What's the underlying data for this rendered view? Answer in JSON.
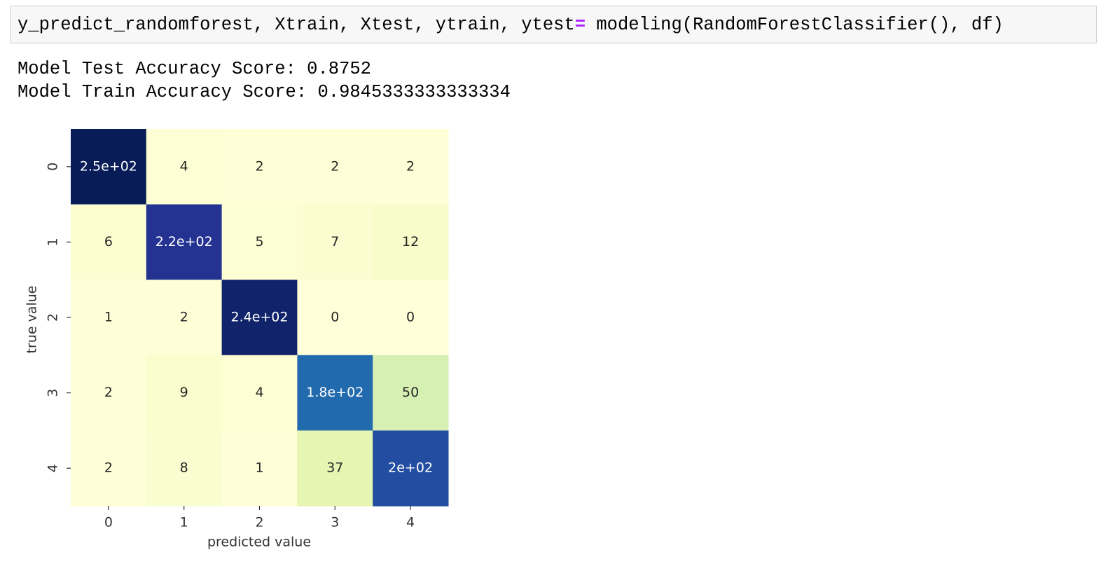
{
  "cell": {
    "code_left": "y_predict_randomforest, Xtrain, Xtest, ytrain, ytest",
    "code_operator": "=",
    "code_right": " modeling(RandomForestClassifier(), df)"
  },
  "output": [
    "Model Test Accuracy Score: 0.8752",
    "Model Train Accuracy Score: 0.9845333333333334"
  ],
  "chart_data": {
    "type": "heatmap",
    "colormap": "YlGnBu",
    "x_label": "predicted value",
    "y_label": "true value",
    "x_categories": [
      "0",
      "1",
      "2",
      "3",
      "4"
    ],
    "y_categories": [
      "0",
      "1",
      "2",
      "3",
      "4"
    ],
    "values": [
      [
        250,
        4,
        2,
        2,
        2
      ],
      [
        6,
        220,
        5,
        7,
        12
      ],
      [
        1,
        2,
        240,
        0,
        0
      ],
      [
        2,
        9,
        4,
        180,
        50
      ],
      [
        2,
        8,
        1,
        37,
        200
      ]
    ],
    "value_labels": [
      [
        "2.5e+02",
        "4",
        "2",
        "2",
        "2"
      ],
      [
        "6",
        "2.2e+02",
        "5",
        "7",
        "12"
      ],
      [
        "1",
        "2",
        "2.4e+02",
        "0",
        "0"
      ],
      [
        "2",
        "9",
        "4",
        "1.8e+02",
        "50"
      ],
      [
        "2",
        "8",
        "1",
        "37",
        "2e+02"
      ]
    ]
  }
}
